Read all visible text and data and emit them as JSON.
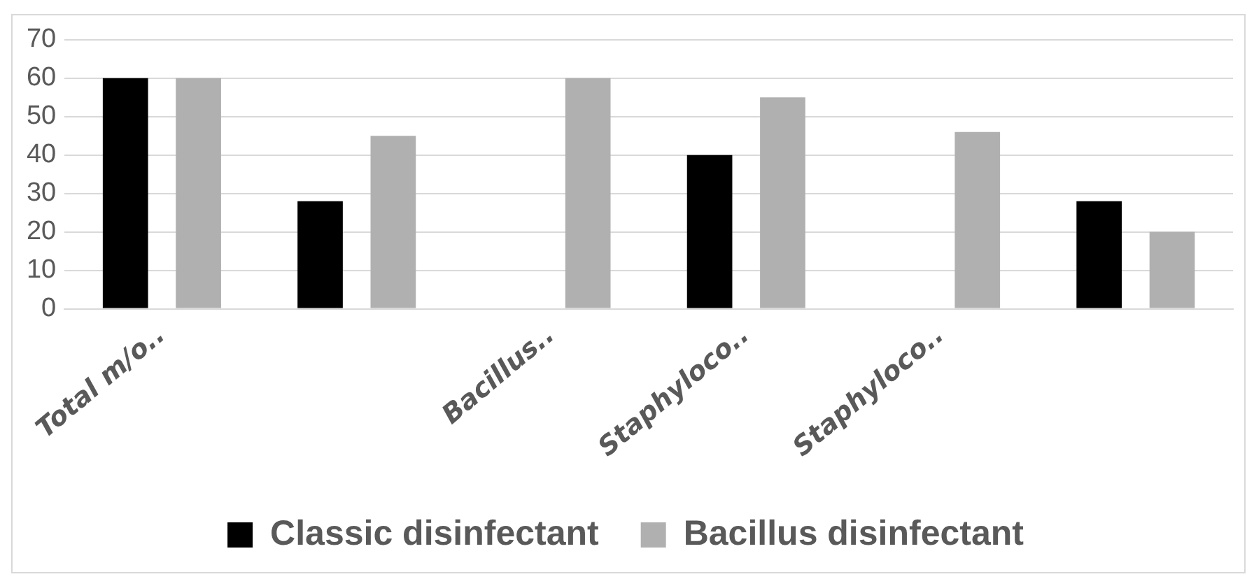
{
  "chart_data": {
    "type": "bar",
    "categories": [
      "Total m/o..",
      null,
      "Bacillus..",
      "Staphyloco..",
      "Staphyloco..",
      null
    ],
    "series": [
      {
        "name": "Classic disinfectant",
        "color": "#000000",
        "values": [
          60,
          28,
          null,
          40,
          null,
          28
        ]
      },
      {
        "name": "Bacillus disinfectant",
        "color": "#b0b0b0",
        "values": [
          60,
          45,
          60,
          55,
          46,
          20
        ]
      }
    ],
    "ylim": [
      0,
      70
    ],
    "yticks": [
      0,
      10,
      20,
      30,
      40,
      50,
      60,
      70
    ],
    "grid": "y",
    "legend": "bottom"
  }
}
